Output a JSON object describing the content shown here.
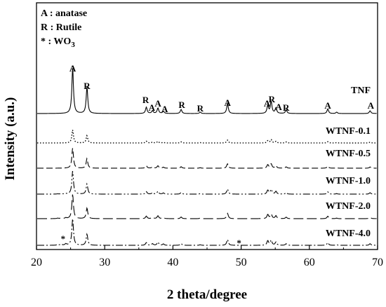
{
  "chart_data": {
    "type": "line",
    "title": "",
    "xlabel": "2 theta/degree",
    "ylabel": "Intensity (a.u.)",
    "xlim": [
      20,
      70
    ],
    "xticks": [
      "20",
      "30",
      "40",
      "50",
      "60",
      "70"
    ],
    "legend": {
      "placement": "top-left",
      "entries": [
        {
          "symbol": "A",
          "text": "A : anatase"
        },
        {
          "symbol": "R",
          "text": "R : Rutile"
        },
        {
          "symbol": "*",
          "text": "* : WO",
          "subscript": "3"
        }
      ]
    },
    "peaks": [
      {
        "x": 25.3,
        "phase": "anatase",
        "height": 1.0
      },
      {
        "x": 27.4,
        "phase": "rutile",
        "height": 0.58
      },
      {
        "x": 36.1,
        "phase": "rutile",
        "height": 0.14
      },
      {
        "x": 37.0,
        "phase": "anatase",
        "height": 0.06
      },
      {
        "x": 37.8,
        "phase": "anatase",
        "height": 0.12
      },
      {
        "x": 38.6,
        "phase": "anatase",
        "height": 0.05
      },
      {
        "x": 41.2,
        "phase": "rutile",
        "height": 0.09
      },
      {
        "x": 44.0,
        "phase": "rutile",
        "height": 0.03
      },
      {
        "x": 48.0,
        "phase": "anatase",
        "height": 0.22
      },
      {
        "x": 53.9,
        "phase": "anatase",
        "height": 0.17
      },
      {
        "x": 54.4,
        "phase": "rutile",
        "height": 0.26
      },
      {
        "x": 55.1,
        "phase": "anatase",
        "height": 0.12
      },
      {
        "x": 56.6,
        "phase": "rutile",
        "height": 0.08
      },
      {
        "x": 62.7,
        "phase": "anatase",
        "height": 0.1
      },
      {
        "x": 64.0,
        "phase": "rutile",
        "height": 0.03
      },
      {
        "x": 68.9,
        "phase": "anatase",
        "height": 0.06
      },
      {
        "x": 70.3,
        "phase": "anatase",
        "height": 0.03
      }
    ],
    "peak_labels": [
      {
        "x": 25.3,
        "text": "A"
      },
      {
        "x": 27.4,
        "text": "R"
      },
      {
        "x": 36.0,
        "text": "R"
      },
      {
        "x": 36.9,
        "text": "A"
      },
      {
        "x": 37.8,
        "text": "A"
      },
      {
        "x": 38.8,
        "text": "A"
      },
      {
        "x": 41.3,
        "text": "R"
      },
      {
        "x": 44.0,
        "text": "R"
      },
      {
        "x": 48.0,
        "text": "A"
      },
      {
        "x": 53.8,
        "text": "A"
      },
      {
        "x": 54.5,
        "text": "R"
      },
      {
        "x": 55.5,
        "text": "A"
      },
      {
        "x": 56.6,
        "text": "R"
      },
      {
        "x": 62.7,
        "text": "A"
      },
      {
        "x": 69.0,
        "text": "A"
      }
    ],
    "wo3_markers": [
      {
        "x": 23.9,
        "text": "*"
      },
      {
        "x": 49.7,
        "text": "*"
      }
    ],
    "wo3_peaks": [
      {
        "x": 23.1,
        "height": 0.03
      },
      {
        "x": 23.6,
        "height": 0.04
      },
      {
        "x": 24.3,
        "height": 0.05
      }
    ],
    "series": [
      {
        "name": "TNF",
        "style": "solid",
        "anatase_scale": 1.0,
        "rutile_scale": 1.0,
        "wo3_scale": 0
      },
      {
        "name": "WTNF-0.1",
        "style": "dotted",
        "anatase_scale": 0.62,
        "rutile_scale": 0.6,
        "wo3_scale": 0
      },
      {
        "name": "WTNF-0.5",
        "style": "dashed",
        "anatase_scale": 0.82,
        "rutile_scale": 0.68,
        "wo3_scale": 0
      },
      {
        "name": "WTNF-1.0",
        "style": "dash-dot-dot",
        "anatase_scale": 0.92,
        "rutile_scale": 0.7,
        "wo3_scale": 0.3
      },
      {
        "name": "WTNF-2.0",
        "style": "long-dash",
        "anatase_scale": 0.96,
        "rutile_scale": 0.72,
        "wo3_scale": 0.6
      },
      {
        "name": "WTNF-4.0",
        "style": "dash-dot",
        "anatase_scale": 1.0,
        "rutile_scale": 0.72,
        "wo3_scale": 1.0
      }
    ]
  }
}
